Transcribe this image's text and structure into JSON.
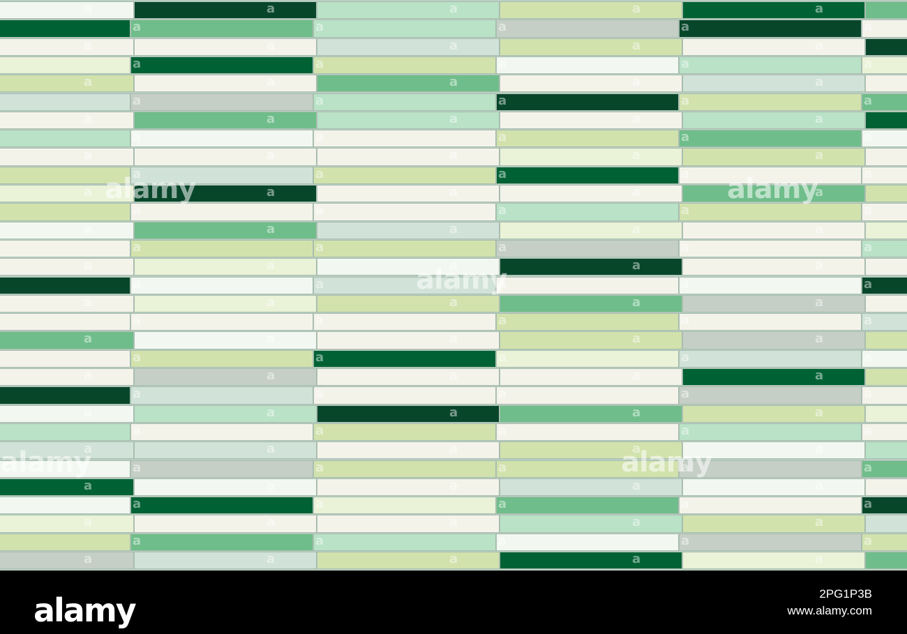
{
  "watermark": {
    "text": "alamy",
    "small_mark": "a"
  },
  "footer": {
    "logo": "alamy",
    "image_id": "2PG1P3B",
    "url": "www.alamy.com"
  },
  "palette": {
    "D": "#08462a",
    "M": "#006234",
    "G": "#6fbd8a",
    "L": "#b9e2c7",
    "Y": "#d2e2ad",
    "P": "#eaf2d7",
    "C": "#f4f3ea",
    "W": "#f2f8f1",
    "S": "#d1e2d8",
    "R": "#c5cfc6"
  },
  "tile_rows": [
    [
      "W",
      "D",
      "L",
      "Y",
      "M",
      "G"
    ],
    [
      "M",
      "G",
      "L",
      "R",
      "D",
      "C"
    ],
    [
      "C",
      "C",
      "S",
      "Y",
      "C",
      "D"
    ],
    [
      "P",
      "M",
      "Y",
      "W",
      "L",
      "P"
    ],
    [
      "Y",
      "C",
      "G",
      "C",
      "S",
      "C"
    ],
    [
      "S",
      "R",
      "L",
      "D",
      "Y",
      "G"
    ],
    [
      "C",
      "G",
      "L",
      "C",
      "L",
      "M"
    ],
    [
      "L",
      "W",
      "C",
      "Y",
      "G",
      "W"
    ],
    [
      "C",
      "C",
      "C",
      "P",
      "Y",
      "C"
    ],
    [
      "Y",
      "S",
      "Y",
      "M",
      "C",
      "C"
    ],
    [
      "P",
      "D",
      "C",
      "C",
      "G",
      "Y"
    ],
    [
      "Y",
      "C",
      "C",
      "L",
      "Y",
      "C"
    ],
    [
      "W",
      "G",
      "S",
      "P",
      "C",
      "P"
    ],
    [
      "C",
      "Y",
      "Y",
      "R",
      "C",
      "L"
    ],
    [
      "C",
      "P",
      "W",
      "D",
      "C",
      "C"
    ],
    [
      "D",
      "W",
      "S",
      "C",
      "W",
      "D"
    ],
    [
      "C",
      "P",
      "Y",
      "G",
      "R",
      "C"
    ],
    [
      "C",
      "C",
      "C",
      "Y",
      "C",
      "S"
    ],
    [
      "G",
      "W",
      "C",
      "Y",
      "R",
      "Y"
    ],
    [
      "C",
      "Y",
      "M",
      "P",
      "S",
      "W"
    ],
    [
      "C",
      "R",
      "C",
      "C",
      "M",
      "Y"
    ],
    [
      "D",
      "S",
      "C",
      "C",
      "R",
      "C"
    ],
    [
      "W",
      "L",
      "D",
      "G",
      "Y",
      "P"
    ],
    [
      "L",
      "C",
      "Y",
      "C",
      "L",
      "C"
    ],
    [
      "S",
      "S",
      "C",
      "Y",
      "W",
      "L"
    ],
    [
      "W",
      "R",
      "Y",
      "Y",
      "R",
      "G"
    ],
    [
      "M",
      "W",
      "C",
      "S",
      "W",
      "C"
    ],
    [
      "W",
      "M",
      "P",
      "G",
      "C",
      "D"
    ],
    [
      "P",
      "C",
      "C",
      "L",
      "Y",
      "S"
    ],
    [
      "Y",
      "G",
      "L",
      "W",
      "R",
      "Y"
    ],
    [
      "R",
      "S",
      "Y",
      "M",
      "P",
      "G"
    ]
  ]
}
